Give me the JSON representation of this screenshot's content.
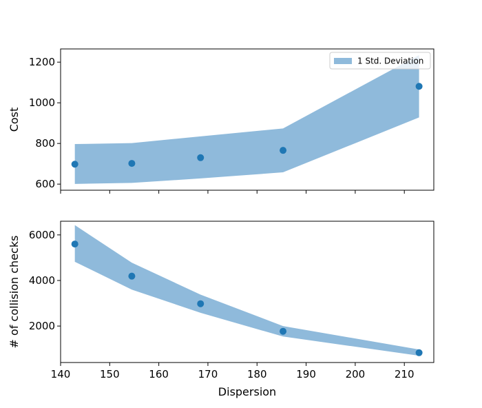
{
  "chart_data": [
    {
      "type": "scatter",
      "title": "",
      "xlabel": "",
      "ylabel": "Cost",
      "xlim": [
        140,
        216
      ],
      "ylim": [
        570,
        1265
      ],
      "xticks": [
        140,
        150,
        160,
        170,
        180,
        190,
        200,
        210
      ],
      "yticks": [
        600,
        800,
        1000,
        1200
      ],
      "show_xtick_labels": false,
      "grid": false,
      "legend": {
        "placement": "top-right",
        "entries": [
          "1 Std. Deviation"
        ]
      },
      "band": {
        "name": "1 Std. Deviation",
        "x": [
          142.9,
          154.5,
          168.5,
          185.3,
          213.0
        ],
        "lower": [
          601,
          606,
          628,
          658,
          928
        ],
        "upper": [
          797,
          802,
          835,
          874,
          1235
        ]
      },
      "points": {
        "x": [
          142.9,
          154.5,
          168.5,
          185.3,
          213.0
        ],
        "y": [
          698,
          702,
          730,
          766,
          1081
        ]
      }
    },
    {
      "type": "scatter",
      "title": "",
      "xlabel": "Dispersion",
      "ylabel": "# of collision checks",
      "xlim": [
        140,
        216
      ],
      "ylim": [
        400,
        6600
      ],
      "xticks": [
        140,
        150,
        160,
        170,
        180,
        190,
        200,
        210
      ],
      "yticks": [
        2000,
        4000,
        6000
      ],
      "show_xtick_labels": true,
      "grid": false,
      "band": {
        "name": "1 Std. Deviation",
        "x": [
          142.9,
          154.5,
          168.5,
          185.3,
          213.0
        ],
        "lower": [
          4820,
          3600,
          2580,
          1540,
          700
        ],
        "upper": [
          6430,
          4780,
          3380,
          2000,
          970
        ]
      },
      "points": {
        "x": [
          142.9,
          154.5,
          168.5,
          185.3,
          213.0
        ],
        "y": [
          5600,
          4190,
          2980,
          1770,
          830
        ]
      }
    }
  ],
  "colors": {
    "band_fill": "#8fbadb",
    "point_fill": "#1f77b4",
    "axis": "#000000",
    "background": "#ffffff"
  }
}
